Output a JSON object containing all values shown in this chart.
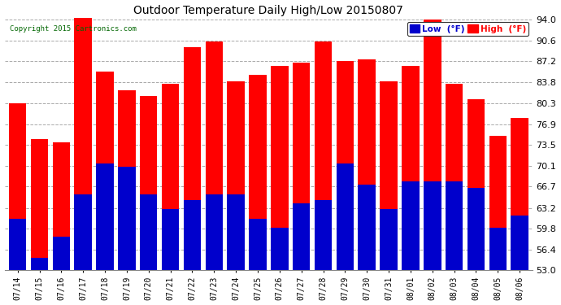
{
  "title": "Outdoor Temperature Daily High/Low 20150807",
  "copyright": "Copyright 2015 Cartronics.com",
  "dates": [
    "07/14",
    "07/15",
    "07/16",
    "07/17",
    "07/18",
    "07/19",
    "07/20",
    "07/21",
    "07/22",
    "07/23",
    "07/24",
    "07/25",
    "07/26",
    "07/27",
    "07/28",
    "07/29",
    "07/30",
    "07/31",
    "08/01",
    "08/02",
    "08/03",
    "08/04",
    "08/05",
    "08/06"
  ],
  "high": [
    80.3,
    74.5,
    74.0,
    95.0,
    85.5,
    82.5,
    81.5,
    83.5,
    89.5,
    90.5,
    84.0,
    85.0,
    86.5,
    87.0,
    90.5,
    87.2,
    87.5,
    84.0,
    86.5,
    94.0,
    83.5,
    81.0,
    75.0,
    78.0
  ],
  "low": [
    61.5,
    55.0,
    58.5,
    65.5,
    70.5,
    70.0,
    65.5,
    63.0,
    64.5,
    65.5,
    65.5,
    61.5,
    60.0,
    64.0,
    64.5,
    70.5,
    67.0,
    63.0,
    67.5,
    67.5,
    67.5,
    66.5,
    60.0,
    62.0
  ],
  "high_color": "#ff0000",
  "low_color": "#0000cc",
  "bg_color": "#ffffff",
  "plot_bg_color": "#ffffff",
  "grid_color": "#aaaaaa",
  "ylim_min": 53.0,
  "ylim_max": 94.0,
  "yticks": [
    53.0,
    56.4,
    59.8,
    63.2,
    66.7,
    70.1,
    73.5,
    76.9,
    80.3,
    83.8,
    87.2,
    90.6,
    94.0
  ],
  "legend_low_label": "Low  (°F)",
  "legend_high_label": "High  (°F)",
  "bar_width": 0.8
}
